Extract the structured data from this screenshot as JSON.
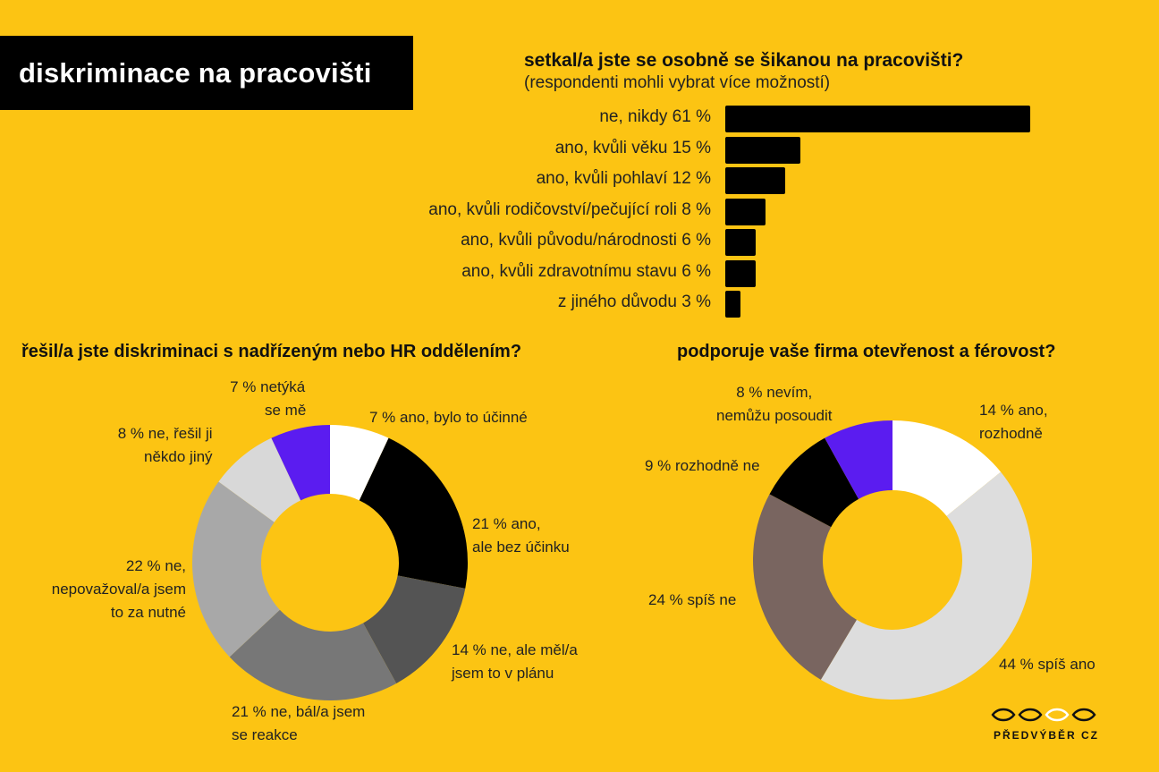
{
  "header": {
    "title": "diskriminace na pracovišti"
  },
  "colors": {
    "background": "#FCC413",
    "title_bg": "#000000",
    "bar": "#000000"
  },
  "chart_data": [
    {
      "type": "bar",
      "orientation": "horizontal",
      "title": "setkal/a jste se osobně se šikanou na pracovišti?",
      "subtitle": "(respondenti mohli vybrat více možností)",
      "categories": [
        "ne, nikdy 61 %",
        "ano, kvůli věku 15 %",
        "ano, kvůli pohlaví 12 %",
        "ano, kvůli rodičovství/pečující roli 8 %",
        "ano, kvůli původu/národnosti 6 %",
        "ano, kvůli zdravotnímu stavu 6 %",
        "z jiného důvodu 3 %"
      ],
      "values": [
        61,
        15,
        12,
        8,
        6,
        6,
        3
      ],
      "unit": "%"
    },
    {
      "type": "pie",
      "style": "donut",
      "title": "řešil/a jste diskriminaci s nadřízeným nebo HR oddělením?",
      "slices": [
        {
          "label": "7 % ano, bylo to účinné",
          "value": 7,
          "color": "#FFFFFF"
        },
        {
          "label": "21 % ano, ale bez účinku",
          "value": 21,
          "color": "#000000"
        },
        {
          "label": "14 % ne, ale měl/a jsem to v plánu",
          "value": 14,
          "color": "#545454"
        },
        {
          "label": "21 % ne, bál/a jsem se reakce",
          "value": 21,
          "color": "#777777"
        },
        {
          "label": "22 % ne, nepovažoval/a jsem to za nutné",
          "value": 22,
          "color": "#A8A8A8"
        },
        {
          "label": "8 % ne, řešil ji někdo jiný",
          "value": 8,
          "color": "#D8D8D8"
        },
        {
          "label": "7 % netýká se mě",
          "value": 7,
          "color": "#5B1CF0"
        }
      ]
    },
    {
      "type": "pie",
      "style": "donut",
      "title": "podporuje vaše firma otevřenost a férovost?",
      "slices": [
        {
          "label": "14 % ano, rozhodně",
          "value": 14,
          "color": "#FFFFFF"
        },
        {
          "label": "44 % spíš ano",
          "value": 44,
          "color": "#DDDDDD"
        },
        {
          "label": "24 % spíš ne",
          "value": 24,
          "color": "#796560"
        },
        {
          "label": "9 % rozhodně ne",
          "value": 9,
          "color": "#000000"
        },
        {
          "label": "8 % nevím, nemůžu posoudit",
          "value": 8,
          "color": "#5B1CF0"
        }
      ]
    }
  ],
  "pie1_labels": {
    "ano_ucinne": "7 % ano, bylo to účinné",
    "bez_ucinku_1": "21 % ano,",
    "bez_ucinku_2": "ale bez účinku",
    "v_planu_1": "14 % ne, ale měl/a",
    "v_planu_2": "jsem to v plánu",
    "reakce_1": "21 % ne, bál/a jsem",
    "reakce_2": "se reakce",
    "nutne_1": "22 % ne,",
    "nutne_2": "nepovažoval/a jsem",
    "nutne_3": "to za nutné",
    "jiny_1": "8 % ne, řešil ji",
    "jiny_2": "někdo jiný",
    "netyka_1": "7 % netýká",
    "netyka_2": "se mě"
  },
  "pie2_labels": {
    "rozhodne_1": "14 % ano,",
    "rozhodne_2": "rozhodně",
    "spis_ano": "44 % spíš ano",
    "spis_ne": "24 % spíš ne",
    "rozhodne_ne": "9 % rozhodně ne",
    "nevim_1": "8 % nevím,",
    "nevim_2": "nemůžu posoudit"
  },
  "logo": {
    "text": "PŘEDVÝBĚR CZ"
  }
}
